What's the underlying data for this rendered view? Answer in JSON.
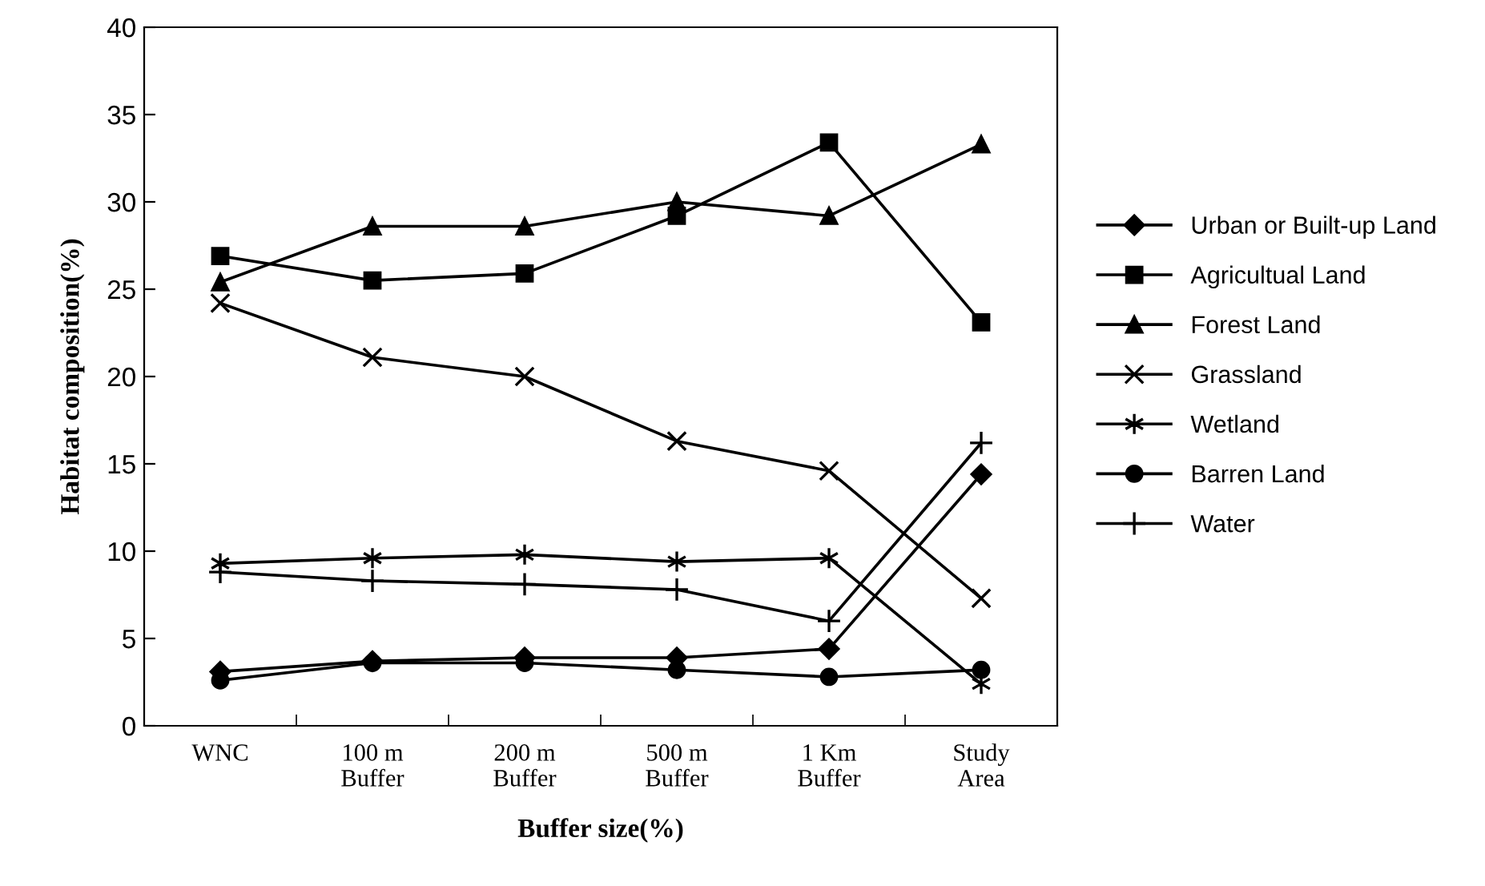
{
  "chart_data": {
    "type": "line",
    "xlabel": "Buffer size(%)",
    "ylabel": "Habitat composition(%)",
    "categories": [
      "WNC",
      "100 m\nBuffer",
      "200 m\nBuffer",
      "500 m\nBuffer",
      "1 Km\nBuffer",
      "Study\nArea"
    ],
    "ylim": [
      0,
      40
    ],
    "yticks": [
      0,
      5,
      10,
      15,
      20,
      25,
      30,
      35,
      40
    ],
    "grid": false,
    "legend": "right",
    "line_style": "solid",
    "series": [
      {
        "name": "Urban or Built-up Land",
        "color": "#000000",
        "marker": "diamond",
        "values": [
          3.1,
          3.7,
          3.9,
          3.9,
          4.4,
          14.4
        ]
      },
      {
        "name": "Agricultual Land",
        "color": "#000000",
        "marker": "square",
        "values": [
          26.9,
          25.5,
          25.9,
          29.2,
          33.4,
          23.1
        ]
      },
      {
        "name": "Forest Land",
        "color": "#000000",
        "marker": "triangle",
        "values": [
          25.4,
          28.6,
          28.6,
          30.0,
          29.2,
          33.3
        ]
      },
      {
        "name": "Grassland",
        "color": "#000000",
        "marker": "x",
        "values": [
          24.2,
          21.1,
          20.0,
          16.3,
          14.6,
          7.3
        ]
      },
      {
        "name": "Wetland",
        "color": "#000000",
        "marker": "cross",
        "values": [
          9.3,
          9.6,
          9.8,
          9.4,
          9.6,
          2.4
        ]
      },
      {
        "name": "Barren Land",
        "color": "#000000",
        "marker": "circle",
        "values": [
          2.6,
          3.6,
          3.6,
          3.2,
          2.8,
          3.2
        ]
      },
      {
        "name": "Water",
        "color": "#000000",
        "marker": "plus",
        "values": [
          8.8,
          8.3,
          8.1,
          7.8,
          6.0,
          16.2
        ]
      }
    ]
  }
}
